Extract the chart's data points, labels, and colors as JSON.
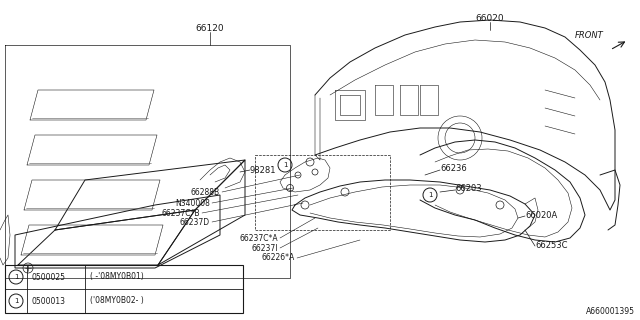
{
  "bg_color": "#ffffff",
  "line_color": "#1a1a1a",
  "gray_color": "#888888",
  "legend_rows": [
    {
      "col1": "0500025",
      "col2": "( -'08MY0B01)"
    },
    {
      "col1": "0500013",
      "col2": "('08MY0B02- )"
    }
  ]
}
